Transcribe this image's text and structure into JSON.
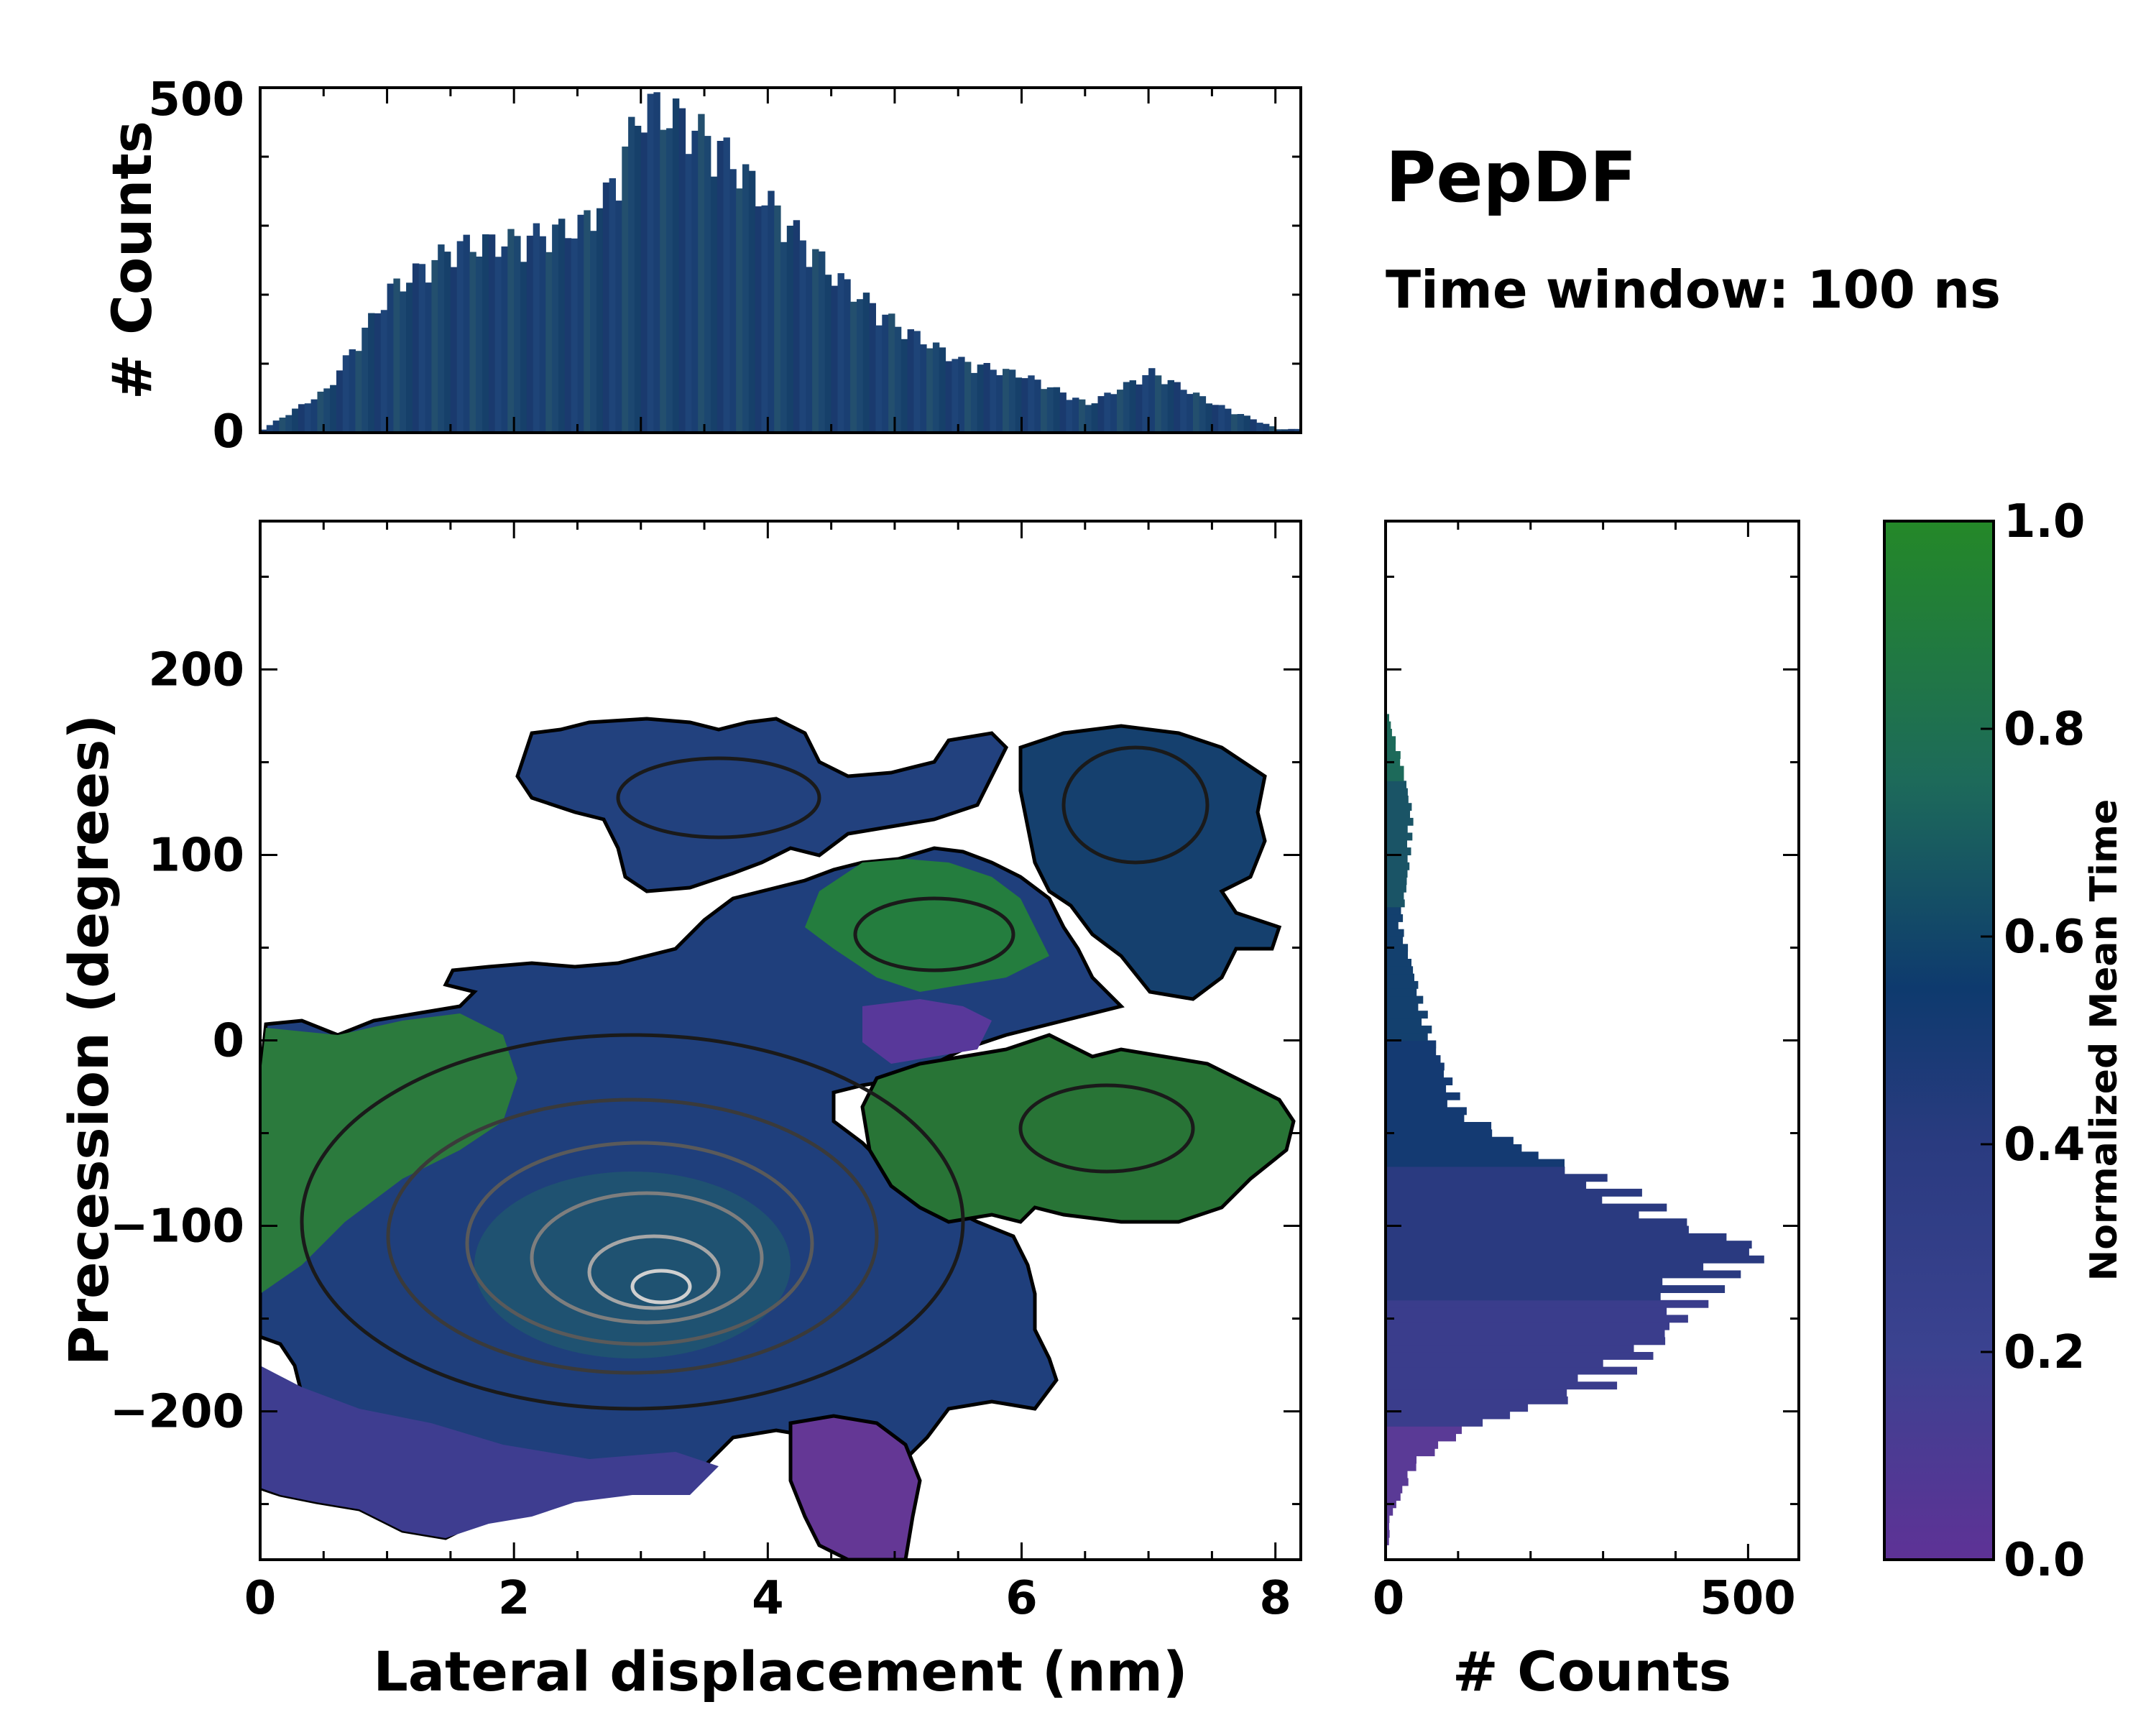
{
  "chart_data": [
    {
      "type": "heatmap",
      "name": "main-heatmap",
      "xlabel": "Lateral displacement (nm)",
      "ylabel": "Precession (degrees)",
      "xlim": [
        0,
        8.2
      ],
      "ylim": [
        -280,
        280
      ],
      "xticks": [
        0,
        2,
        4,
        6,
        8
      ],
      "yticks": [
        -200,
        -100,
        0,
        100,
        200
      ],
      "ytick_labels": [
        "−200",
        "−100",
        "0",
        "100",
        "200"
      ],
      "color_meaning": "Normalized Mean Time",
      "regions": [
        {
          "label": "left-green",
          "x": 0.8,
          "y": -70,
          "time": 0.85
        },
        {
          "label": "central-core",
          "x": 3.5,
          "y": -130,
          "time": 0.5
        },
        {
          "label": "lower-purple",
          "x": 2.0,
          "y": -230,
          "time": 0.15
        },
        {
          "label": "bottom-purple",
          "x": 4.8,
          "y": -240,
          "time": 0.05
        },
        {
          "label": "right-green",
          "x": 7.0,
          "y": -50,
          "time": 0.85
        },
        {
          "label": "upper-blue",
          "x": 3.0,
          "y": 140,
          "time": 0.45
        },
        {
          "label": "upper-right-blue",
          "x": 7.0,
          "y": 110,
          "time": 0.45
        },
        {
          "label": "mid-green",
          "x": 5.0,
          "y": 60,
          "time": 0.8
        }
      ]
    },
    {
      "type": "bar",
      "name": "top-histogram",
      "ylabel": "# Counts",
      "ylim": [
        0,
        500
      ],
      "yticks": [
        0,
        500
      ],
      "x": [
        0.0,
        0.5,
        1.0,
        1.5,
        2.0,
        2.5,
        2.7,
        3.0,
        3.3,
        3.6,
        4.0,
        4.5,
        5.0,
        5.5,
        6.0,
        6.5,
        7.0,
        7.5,
        8.0
      ],
      "values": [
        5,
        60,
        200,
        260,
        270,
        290,
        330,
        460,
        440,
        400,
        320,
        220,
        150,
        100,
        80,
        40,
        85,
        40,
        5
      ]
    },
    {
      "type": "bar",
      "orientation": "horizontal",
      "name": "right-histogram",
      "xlabel": "# Counts",
      "xlim": [
        0,
        570
      ],
      "xticks": [
        0,
        500
      ],
      "y": [
        -260,
        -230,
        -210,
        -190,
        -160,
        -130,
        -115,
        -100,
        -80,
        -60,
        -40,
        -20,
        0,
        30,
        60,
        90,
        120,
        150,
        170
      ],
      "values": [
        5,
        40,
        110,
        280,
        370,
        430,
        500,
        380,
        300,
        180,
        100,
        80,
        60,
        40,
        20,
        30,
        35,
        20,
        5
      ]
    },
    {
      "type": "colorbar",
      "name": "colorbar",
      "label": "Normalized Mean Time",
      "range": [
        0.0,
        1.0
      ],
      "ticks": [
        0.0,
        0.2,
        0.4,
        0.6,
        0.8,
        1.0
      ],
      "tick_labels": [
        "0.0",
        "0.2",
        "0.4",
        "0.6",
        "0.8",
        "1.0"
      ],
      "colors": [
        "#5e3296",
        "#37498c",
        "#2a3b80",
        "#0e3a6e",
        "#1d6a5a",
        "#248828"
      ]
    }
  ],
  "annotations": {
    "title": "PepDF",
    "subtitle": "Time window: 100 ns"
  }
}
